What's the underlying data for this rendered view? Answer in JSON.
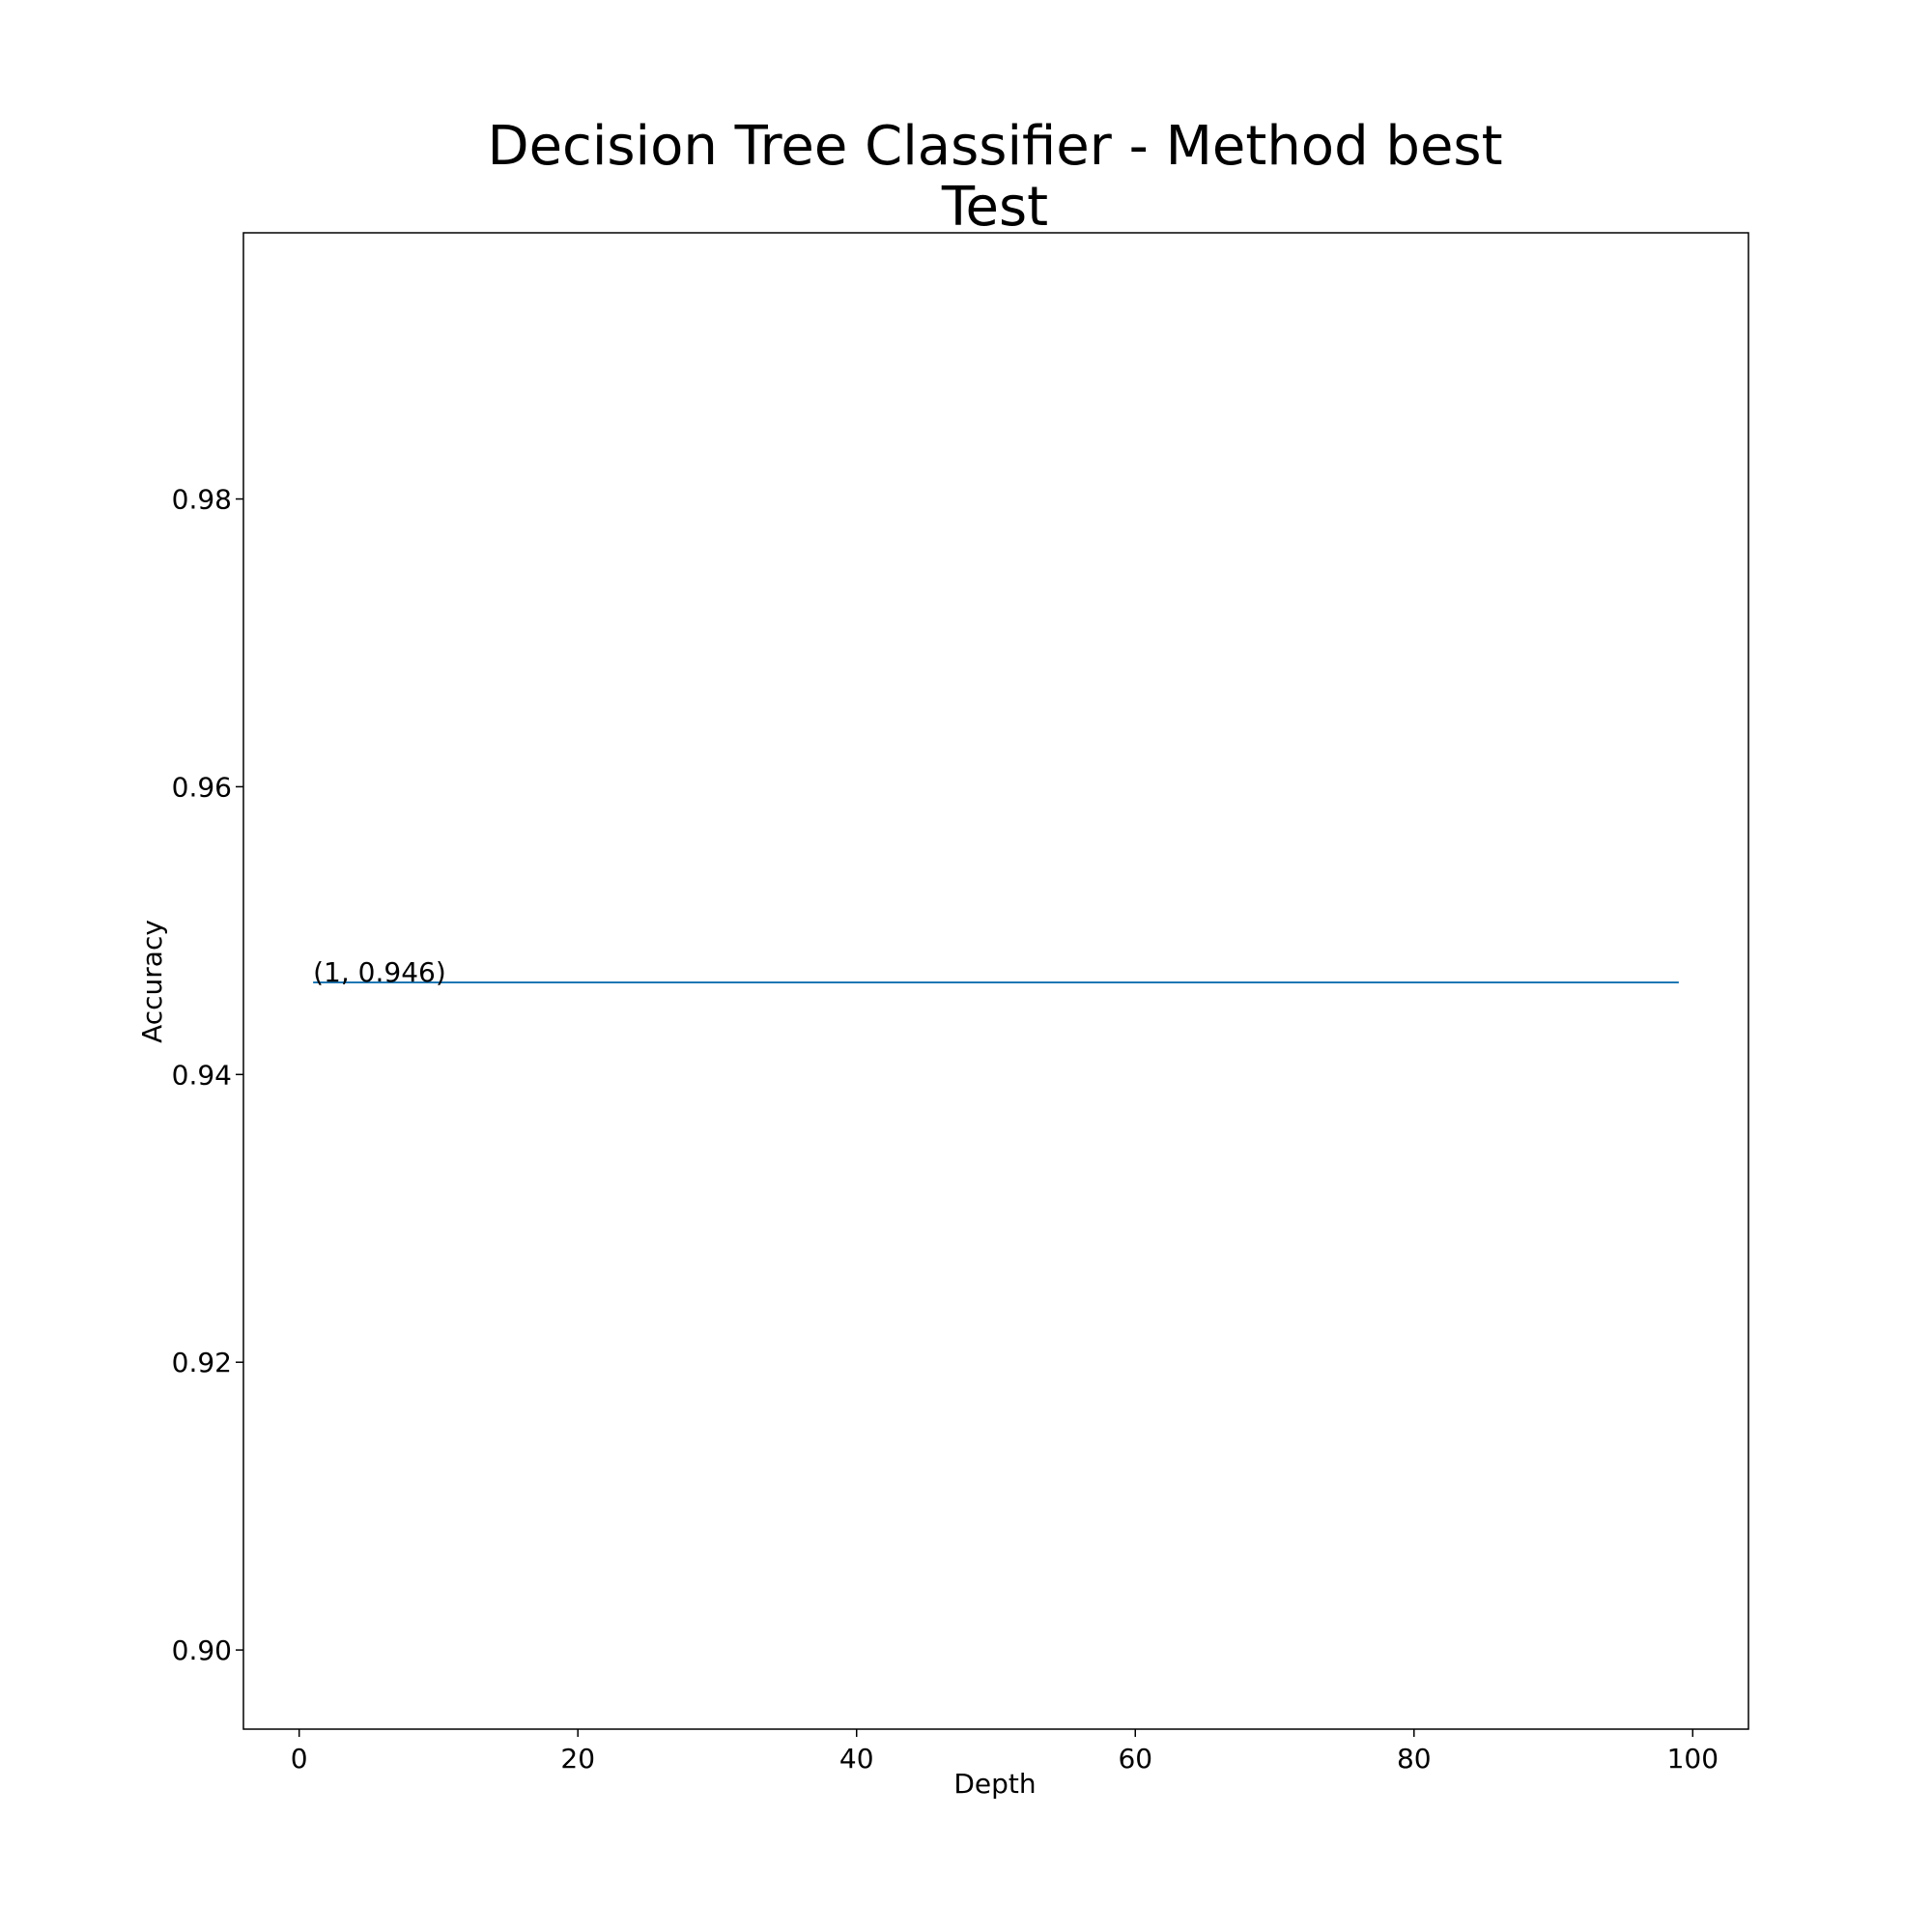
{
  "chart_data": {
    "type": "line",
    "title": [
      "Decision Tree Classifier - Method best",
      "Test"
    ],
    "xlabel": "Depth",
    "ylabel": "Accuracy",
    "xlim": [
      -4,
      104
    ],
    "ylim": [
      0.8945,
      0.9985
    ],
    "xticks": [
      0,
      20,
      40,
      60,
      80,
      100
    ],
    "xtick_labels": [
      "0",
      "20",
      "40",
      "60",
      "80",
      "100"
    ],
    "yticks": [
      0.9,
      0.92,
      0.94,
      0.96,
      0.98
    ],
    "ytick_labels": [
      "0.90",
      "0.92",
      "0.94",
      "0.96",
      "0.98"
    ],
    "grid": false,
    "series": [
      {
        "color": "#1f77b4",
        "x": [
          1,
          99
        ],
        "y": [
          0.9464,
          0.9464
        ]
      }
    ],
    "annotations": [
      {
        "text": "(1, 0.946)",
        "x": 1,
        "y": 0.9464
      }
    ]
  }
}
